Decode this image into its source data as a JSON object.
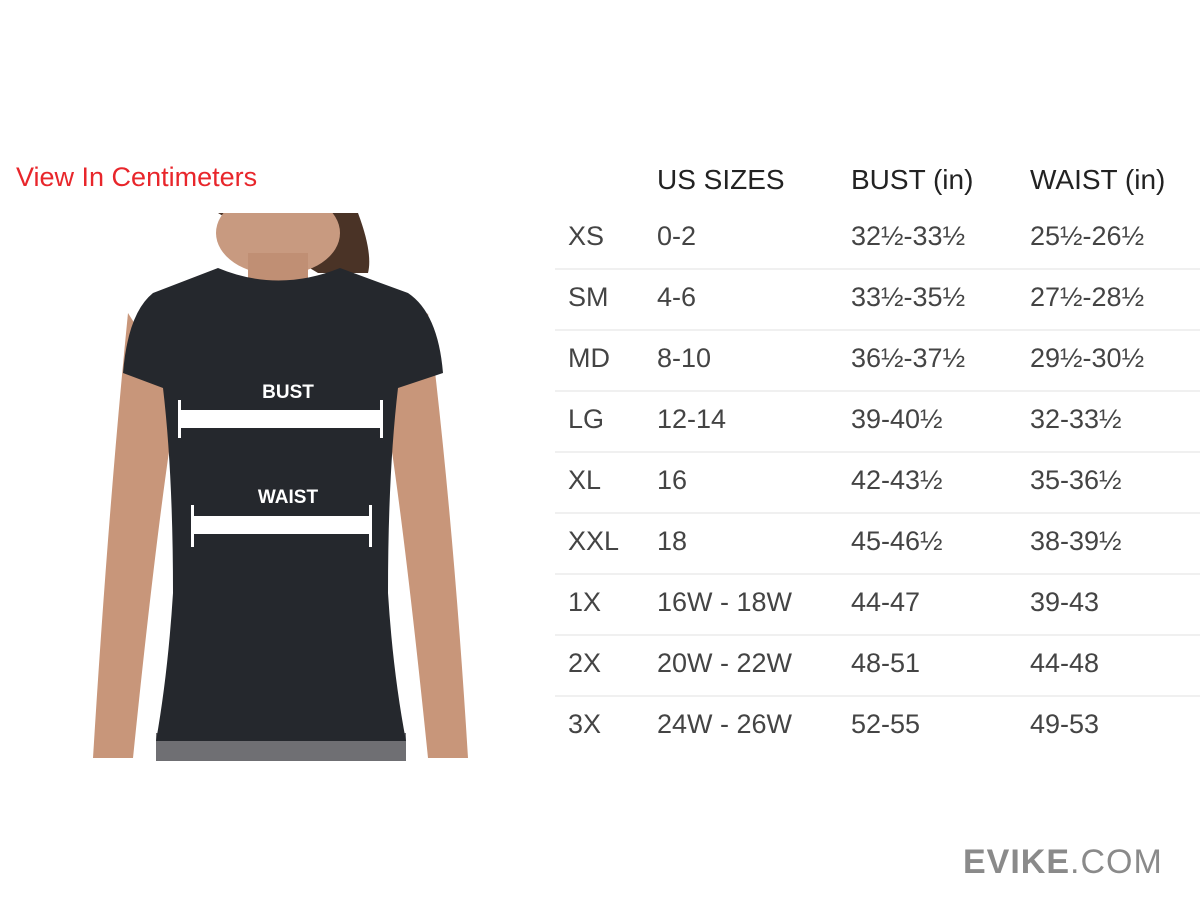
{
  "link": {
    "label": "View In Centimeters",
    "color": "#e8262b"
  },
  "figure": {
    "bust_label": "BUST",
    "waist_label": "WAIST"
  },
  "table": {
    "headers": [
      "",
      "US SIZES",
      "BUST (in)",
      "WAIST (in)"
    ],
    "rows": [
      [
        "XS",
        "0-2",
        "32½-33½",
        "25½-26½"
      ],
      [
        "SM",
        "4-6",
        "33½-35½",
        "27½-28½"
      ],
      [
        "MD",
        "8-10",
        "36½-37½",
        "29½-30½"
      ],
      [
        "LG",
        "12-14",
        "39-40½",
        "32-33½"
      ],
      [
        "XL",
        "16",
        "42-43½",
        "35-36½"
      ],
      [
        "XXL",
        "18",
        "45-46½",
        "38-39½"
      ],
      [
        "1X",
        "16W - 18W",
        "44-47",
        "39-43"
      ],
      [
        "2X",
        "20W - 22W",
        "48-51",
        "44-48"
      ],
      [
        "3X",
        "24W - 26W",
        "52-55",
        "49-53"
      ]
    ]
  },
  "logo": {
    "bold": "EVIKE",
    "light": ".COM"
  }
}
